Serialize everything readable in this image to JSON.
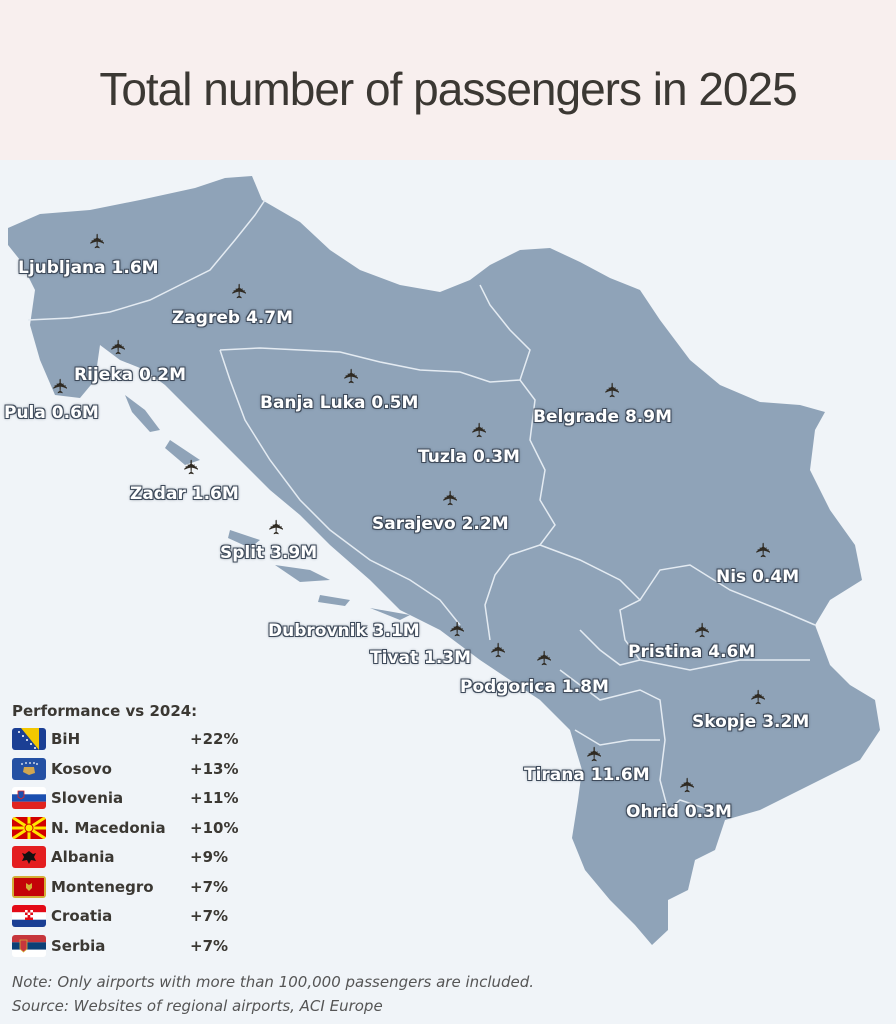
{
  "title": "Total number of passengers in 2025",
  "airports": [
    {
      "name": "Ljubljana",
      "value": "1.6M",
      "label": "Ljubljana 1.6M"
    },
    {
      "name": "Zagreb",
      "value": "4.7M",
      "label": "Zagreb 4.7M"
    },
    {
      "name": "Rijeka",
      "value": "0.2M",
      "label": "Rijeka 0.2M"
    },
    {
      "name": "Pula",
      "value": "0.6M",
      "label": "Pula 0.6M"
    },
    {
      "name": "Banja Luka",
      "value": "0.5M",
      "label": "Banja Luka 0.5M"
    },
    {
      "name": "Belgrade",
      "value": "8.9M",
      "label": "Belgrade 8.9M"
    },
    {
      "name": "Tuzla",
      "value": "0.3M",
      "label": "Tuzla 0.3M"
    },
    {
      "name": "Zadar",
      "value": "1.6M",
      "label": "Zadar 1.6M"
    },
    {
      "name": "Sarajevo",
      "value": "2.2M",
      "label": "Sarajevo 2.2M"
    },
    {
      "name": "Split",
      "value": "3.9M",
      "label": "Split 3.9M"
    },
    {
      "name": "Nis",
      "value": "0.4M",
      "label": "Nis 0.4M"
    },
    {
      "name": "Dubrovnik",
      "value": "3.1M",
      "label": "Dubrovnik 3.1M"
    },
    {
      "name": "Tivat",
      "value": "1.3M",
      "label": "Tivat 1.3M"
    },
    {
      "name": "Pristina",
      "value": "4.6M",
      "label": "Pristina 4.6M"
    },
    {
      "name": "Podgorica",
      "value": "1.8M",
      "label": "Podgorica 1.8M"
    },
    {
      "name": "Skopje",
      "value": "3.2M",
      "label": "Skopje 3.2M"
    },
    {
      "name": "Tirana",
      "value": "11.6M",
      "label": "Tirana 11.6M"
    },
    {
      "name": "Ohrid",
      "value": "0.3M",
      "label": "Ohrid 0.3M"
    }
  ],
  "legend": {
    "title": "Performance vs 2024:",
    "rows": [
      {
        "country": "BiH",
        "change": "+22%"
      },
      {
        "country": "Kosovo",
        "change": "+13%"
      },
      {
        "country": "Slovenia",
        "change": "+11%"
      },
      {
        "country": "N. Macedonia",
        "change": "+10%"
      },
      {
        "country": "Albania",
        "change": "+9%"
      },
      {
        "country": "Montenegro",
        "change": "+7%"
      },
      {
        "country": "Croatia",
        "change": "+7%"
      },
      {
        "country": "Serbia",
        "change": "+7%"
      }
    ]
  },
  "note": "Note: Only airports with more than 100,000 passengers are included.",
  "source": "Source: Websites of regional airports, ACI Europe",
  "colors": {
    "land": "#8fa3b8",
    "border": "#e4ebf2",
    "background": "#f0f4f8",
    "header_bg": "#f8efee",
    "title_text": "#3b3833"
  },
  "icons": {
    "airport": "airplane-icon"
  }
}
